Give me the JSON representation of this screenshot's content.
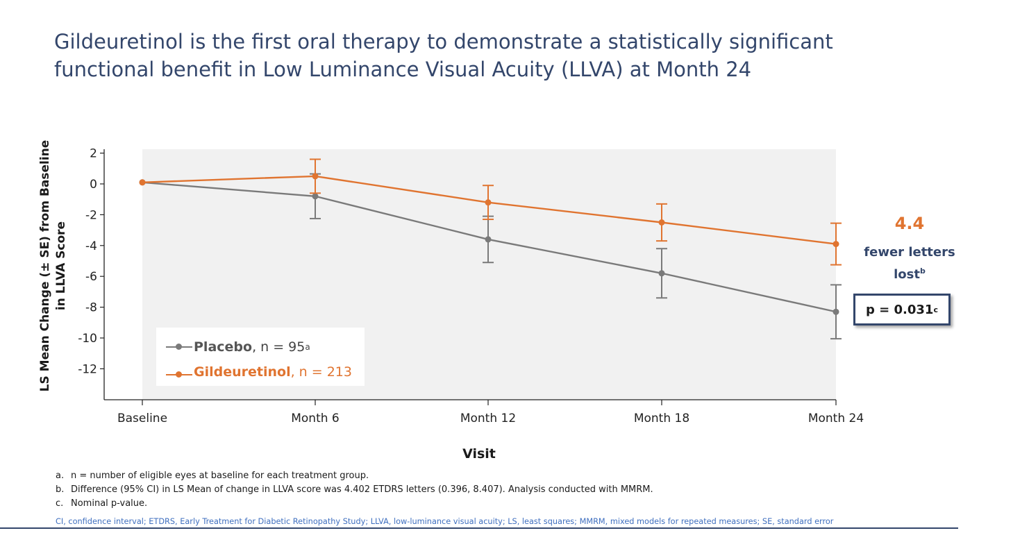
{
  "title_lines": [
    "Gildeuretinol is the first oral therapy to demonstrate a statistically significant",
    "functional benefit in Low Luminance Visual Acuity (LLVA) at Month 24"
  ],
  "colors": {
    "placebo": "#7a7a7a",
    "gildeuretinol": "#e07430",
    "title": "#33466b",
    "plot_bg": "#f1f1f1"
  },
  "chart_data": {
    "type": "line",
    "x": [
      "Baseline",
      "Month 6",
      "Month 12",
      "Month 18",
      "Month 24"
    ],
    "ylabel_lines": [
      "LS Mean Change (± SE) from Baseline",
      "in LLVA Score"
    ],
    "xlabel": "Visit",
    "ylim": [
      -14,
      2.5
    ],
    "yticks": [
      2,
      0,
      -2,
      -4,
      -6,
      -8,
      -10,
      -12
    ],
    "grid": false,
    "legend_position": "bottom-left",
    "series": [
      {
        "name": "Placebo",
        "n_text": ", n = 95",
        "n_sup": "a",
        "color": "#7a7a7a",
        "values": [
          0.1,
          -0.8,
          -3.6,
          -5.8,
          -8.3
        ],
        "se": [
          0,
          1.45,
          1.5,
          1.6,
          1.75
        ]
      },
      {
        "name": "Gildeuretinol",
        "n_text": ", n = 213",
        "n_sup": "",
        "color": "#e07430",
        "values": [
          0.1,
          0.5,
          -1.2,
          -2.5,
          -3.9
        ],
        "se": [
          0,
          1.1,
          1.1,
          1.2,
          1.35
        ]
      }
    ]
  },
  "annotation": {
    "value": "4.4",
    "text_line1": "fewer letters",
    "text_line2": "lost",
    "text_sup": "b",
    "pvalue": "p = 0.031",
    "pvalue_sup": "c"
  },
  "footnotes": [
    {
      "label": "a.",
      "text": "n = number of eligible eyes at baseline for each treatment group."
    },
    {
      "label": "b.",
      "text": "Difference (95% CI) in LS Mean of change in LLVA score was 4.402 ETDRS letters (0.396, 8.407). Analysis conducted with MMRM."
    },
    {
      "label": "c.",
      "text": "Nominal p-value."
    }
  ],
  "abbreviations": "CI, confidence interval; ETDRS, Early Treatment for Diabetic Retinopathy Study; LLVA, low-luminance visual acuity; LS, least squares; MMRM, mixed models for repeated measures; SE, standard error"
}
